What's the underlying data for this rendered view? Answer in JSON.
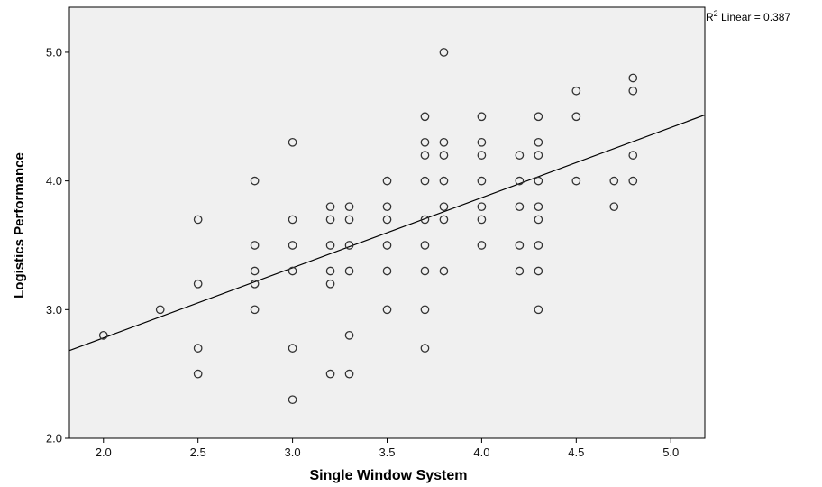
{
  "chart_data": {
    "type": "scatter",
    "xlabel": "Single Window System",
    "ylabel": "Logistics Performance",
    "xlim": [
      1.82,
      5.18
    ],
    "ylim": [
      2.0,
      5.35
    ],
    "x_ticks": [
      "2.0",
      "2.5",
      "3.0",
      "3.5",
      "4.0",
      "4.5",
      "5.0"
    ],
    "y_ticks": [
      "2.0",
      "3.0",
      "4.0",
      "5.0"
    ],
    "fit_line": {
      "label_prefix": "R",
      "label_sup": "2",
      "label_rest": " Linear = 0.387",
      "slope": 0.545,
      "intercept": 1.69
    },
    "grid": false,
    "colors": {
      "plot_bg": "#f0f0f0",
      "marker_stroke": "#333333",
      "line": "#000000"
    },
    "points": [
      [
        2.0,
        2.8
      ],
      [
        2.3,
        3.0
      ],
      [
        2.5,
        3.7
      ],
      [
        2.5,
        3.2
      ],
      [
        2.5,
        2.7
      ],
      [
        2.5,
        2.5
      ],
      [
        2.8,
        4.0
      ],
      [
        2.8,
        3.5
      ],
      [
        2.8,
        3.3
      ],
      [
        2.8,
        3.2
      ],
      [
        2.8,
        3.0
      ],
      [
        3.0,
        4.3
      ],
      [
        3.0,
        3.7
      ],
      [
        3.0,
        3.5
      ],
      [
        3.0,
        3.3
      ],
      [
        3.0,
        2.7
      ],
      [
        3.0,
        2.3
      ],
      [
        3.2,
        3.8
      ],
      [
        3.2,
        3.7
      ],
      [
        3.2,
        3.5
      ],
      [
        3.2,
        3.3
      ],
      [
        3.2,
        3.2
      ],
      [
        3.2,
        2.5
      ],
      [
        3.3,
        3.8
      ],
      [
        3.3,
        3.7
      ],
      [
        3.3,
        3.5
      ],
      [
        3.3,
        3.3
      ],
      [
        3.3,
        2.8
      ],
      [
        3.3,
        2.5
      ],
      [
        3.5,
        4.0
      ],
      [
        3.5,
        3.8
      ],
      [
        3.5,
        3.7
      ],
      [
        3.5,
        3.5
      ],
      [
        3.5,
        3.3
      ],
      [
        3.5,
        3.0
      ],
      [
        3.7,
        4.5
      ],
      [
        3.7,
        4.3
      ],
      [
        3.7,
        4.2
      ],
      [
        3.7,
        4.0
      ],
      [
        3.7,
        3.7
      ],
      [
        3.7,
        3.5
      ],
      [
        3.7,
        3.3
      ],
      [
        3.7,
        3.0
      ],
      [
        3.7,
        2.7
      ],
      [
        3.8,
        5.0
      ],
      [
        3.8,
        4.3
      ],
      [
        3.8,
        4.2
      ],
      [
        3.8,
        4.0
      ],
      [
        3.8,
        3.8
      ],
      [
        3.8,
        3.7
      ],
      [
        3.8,
        3.3
      ],
      [
        4.0,
        4.5
      ],
      [
        4.0,
        4.3
      ],
      [
        4.0,
        4.2
      ],
      [
        4.0,
        4.0
      ],
      [
        4.0,
        3.8
      ],
      [
        4.0,
        3.7
      ],
      [
        4.0,
        3.5
      ],
      [
        4.2,
        4.2
      ],
      [
        4.2,
        4.0
      ],
      [
        4.2,
        3.8
      ],
      [
        4.2,
        3.5
      ],
      [
        4.2,
        3.3
      ],
      [
        4.3,
        4.5
      ],
      [
        4.3,
        4.3
      ],
      [
        4.3,
        4.2
      ],
      [
        4.3,
        4.0
      ],
      [
        4.3,
        3.8
      ],
      [
        4.3,
        3.7
      ],
      [
        4.3,
        3.5
      ],
      [
        4.3,
        3.3
      ],
      [
        4.3,
        3.0
      ],
      [
        4.5,
        4.7
      ],
      [
        4.5,
        4.5
      ],
      [
        4.5,
        4.0
      ],
      [
        4.7,
        4.0
      ],
      [
        4.7,
        3.8
      ],
      [
        4.8,
        4.8
      ],
      [
        4.8,
        4.7
      ],
      [
        4.8,
        4.2
      ],
      [
        4.8,
        4.0
      ]
    ]
  }
}
